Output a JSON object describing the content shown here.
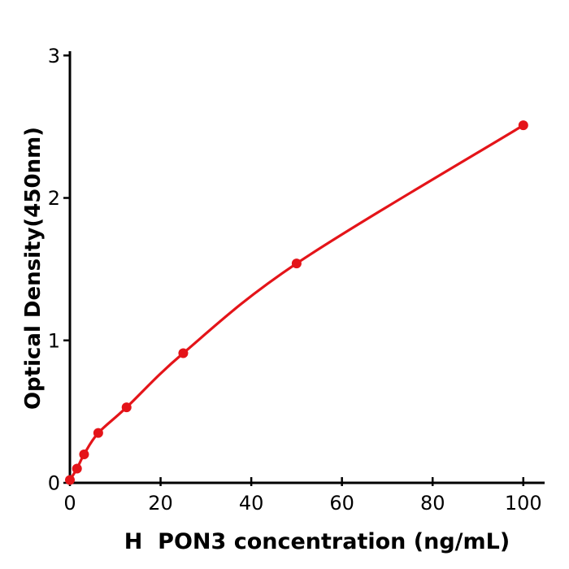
{
  "chart_data": {
    "type": "scatter",
    "subtype": "standard-curve-with-fitted-line",
    "title": "",
    "xlabel": "H  PON3 concentration (ng/mL)",
    "ylabel": "Optical Density(450nm)",
    "x": [
      0,
      1.563,
      3.125,
      6.25,
      12.5,
      25,
      50,
      100
    ],
    "y": [
      0.02,
      0.1,
      0.2,
      0.35,
      0.53,
      0.91,
      1.54,
      2.51
    ],
    "x_ticks": [
      0,
      20,
      40,
      60,
      80,
      100
    ],
    "y_ticks": [
      0,
      1,
      2,
      3
    ],
    "xlim": [
      0,
      104.7
    ],
    "ylim": [
      0,
      3.03
    ],
    "grid": false,
    "legend": "none",
    "marker": "circle",
    "marker_size": 6,
    "line_color": "#e41419",
    "point_color": "#e41419",
    "axis_color": "#000000",
    "tick_label_color": "#000000",
    "background": "#ffffff"
  }
}
